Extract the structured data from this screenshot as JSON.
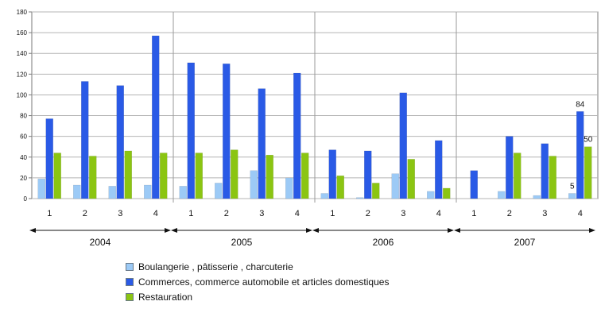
{
  "chart_data": {
    "type": "bar",
    "years": [
      "2004",
      "2005",
      "2006",
      "2007"
    ],
    "categories": [
      "1",
      "2",
      "3",
      "4",
      "1",
      "2",
      "3",
      "4",
      "1",
      "2",
      "3",
      "4",
      "1",
      "2",
      "3",
      "4"
    ],
    "ylim": [
      0,
      180
    ],
    "yticks": [
      0,
      20,
      40,
      60,
      80,
      100,
      120,
      140,
      160,
      180
    ],
    "grid": true,
    "legend_position": "bottom",
    "series": [
      {
        "name": "Boulangerie  , pâtisserie  , charcuterie",
        "color": "#9ccaf6",
        "values": [
          19,
          13,
          12,
          13,
          12,
          15,
          27,
          20,
          5,
          1,
          24,
          7,
          0,
          7,
          3,
          5
        ]
      },
      {
        "name": "Commerces, commerce automobile et articles domestiques",
        "color": "#2a5ae6",
        "values": [
          77,
          113,
          109,
          157,
          131,
          130,
          106,
          121,
          47,
          46,
          102,
          56,
          27,
          60,
          53,
          84
        ]
      },
      {
        "name": "Restauration",
        "color": "#8bc512",
        "values": [
          44,
          41,
          46,
          44,
          44,
          47,
          42,
          44,
          22,
          15,
          38,
          10,
          0,
          44,
          41,
          50
        ]
      }
    ],
    "data_labels": [
      {
        "series": 0,
        "index": 15,
        "text": "5"
      },
      {
        "series": 1,
        "index": 15,
        "text": "84"
      },
      {
        "series": 2,
        "index": 15,
        "text": "50"
      }
    ]
  }
}
